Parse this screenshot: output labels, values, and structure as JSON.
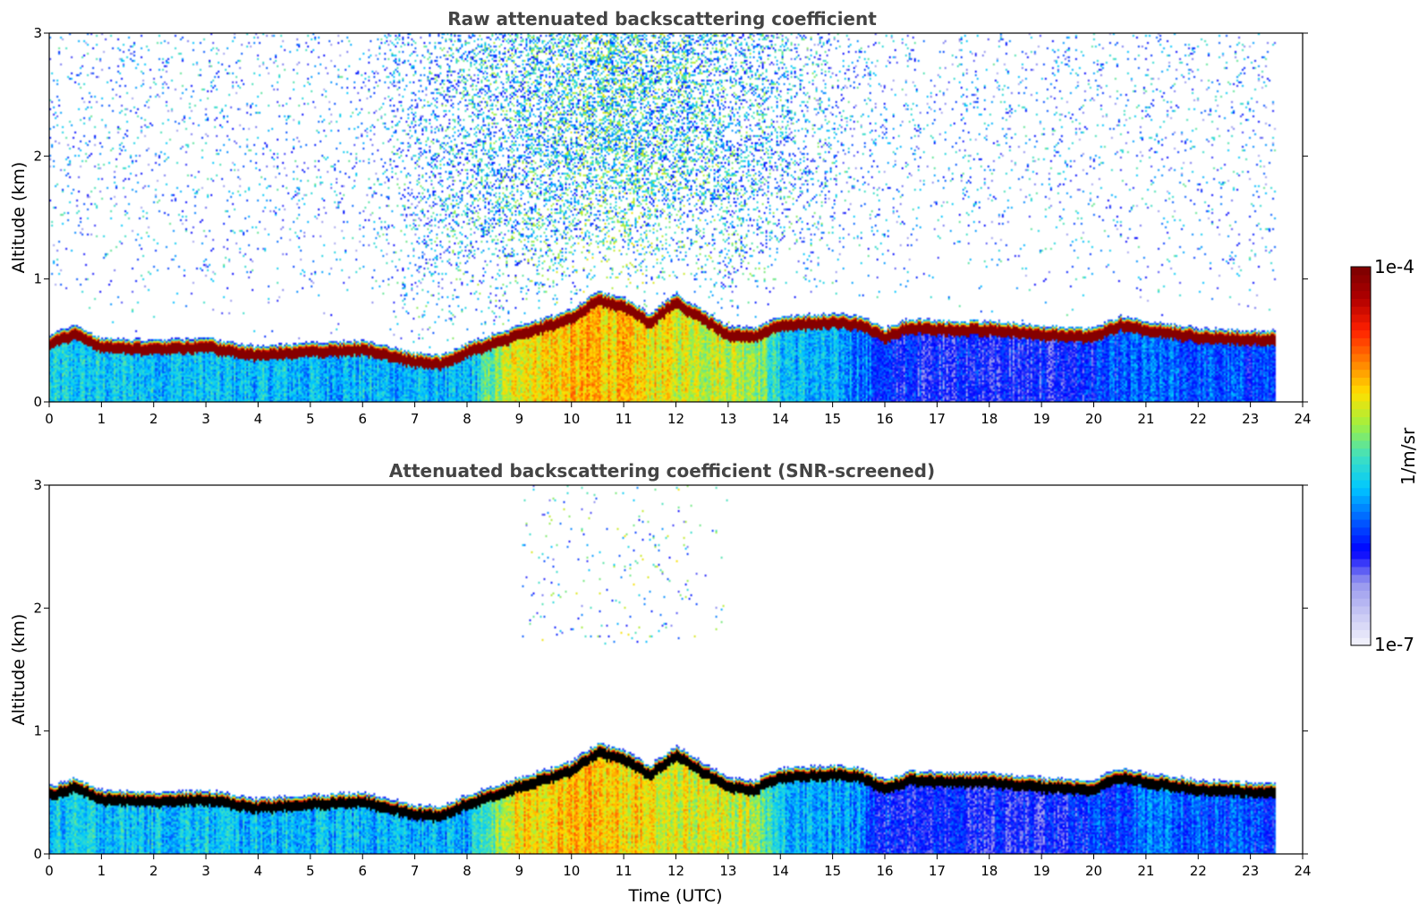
{
  "chart_data": [
    {
      "type": "heatmap",
      "title": "Raw attenuated backscattering coefficient",
      "xlabel": "",
      "ylabel": "Altitude (km)",
      "xlim": [
        0,
        24
      ],
      "ylim": [
        0,
        3
      ],
      "x_ticks": [
        "0",
        "1",
        "2",
        "3",
        "4",
        "5",
        "6",
        "7",
        "8",
        "9",
        "10",
        "11",
        "12",
        "13",
        "14",
        "15",
        "16",
        "17",
        "18",
        "19",
        "20",
        "21",
        "22",
        "23",
        "24"
      ],
      "y_ticks": [
        "0",
        "1",
        "2",
        "3"
      ],
      "data_extent_hours": [
        0,
        23.5
      ],
      "layer_top_km": {
        "time_h": [
          0,
          0.5,
          1,
          2,
          3,
          4,
          5,
          6,
          7,
          7.5,
          8,
          9,
          10,
          10.5,
          11,
          11.5,
          12,
          12.5,
          13,
          13.5,
          14,
          15,
          15.5,
          16,
          16.5,
          17,
          18,
          19,
          20,
          20.5,
          21,
          22,
          23,
          23.5
        ],
        "value": [
          0.55,
          0.62,
          0.52,
          0.5,
          0.52,
          0.45,
          0.48,
          0.5,
          0.4,
          0.38,
          0.48,
          0.62,
          0.75,
          0.9,
          0.85,
          0.72,
          0.88,
          0.75,
          0.62,
          0.6,
          0.7,
          0.72,
          0.7,
          0.6,
          0.68,
          0.66,
          0.66,
          0.62,
          0.6,
          0.7,
          0.66,
          0.6,
          0.58,
          0.58
        ]
      },
      "aerosol_level_log10": {
        "time_h": [
          0,
          8,
          9,
          10.5,
          12,
          13.5,
          14,
          15.5,
          16,
          19,
          21,
          23.5
        ],
        "value": [
          -5.7,
          -5.8,
          -5.0,
          -4.9,
          -5.1,
          -5.2,
          -5.7,
          -5.9,
          -6.2,
          -6.3,
          -6.0,
          -6.1
        ]
      },
      "noise": "strong"
    },
    {
      "type": "heatmap",
      "title": "Attenuated backscattering coefficient (SNR-screened)",
      "xlabel": "Time (UTC)",
      "ylabel": "Altitude (km)",
      "xlim": [
        0,
        24
      ],
      "ylim": [
        0,
        3
      ],
      "x_ticks": [
        "0",
        "1",
        "2",
        "3",
        "4",
        "5",
        "6",
        "7",
        "8",
        "9",
        "10",
        "11",
        "12",
        "13",
        "14",
        "15",
        "16",
        "17",
        "18",
        "19",
        "20",
        "21",
        "22",
        "23",
        "24"
      ],
      "y_ticks": [
        "0",
        "1",
        "2",
        "3"
      ],
      "data_extent_hours": [
        0,
        23.5
      ],
      "layer_top_km": {
        "time_h": [
          0,
          0.5,
          1,
          2,
          3,
          4,
          5,
          6,
          7,
          7.5,
          8,
          9,
          10,
          10.5,
          11,
          11.5,
          12,
          12.5,
          13,
          13.5,
          14,
          15,
          15.5,
          16,
          16.5,
          17,
          18,
          19,
          20,
          20.5,
          21,
          22,
          23,
          23.5
        ],
        "value": [
          0.55,
          0.62,
          0.52,
          0.5,
          0.52,
          0.45,
          0.48,
          0.5,
          0.4,
          0.38,
          0.48,
          0.62,
          0.75,
          0.9,
          0.85,
          0.72,
          0.88,
          0.75,
          0.62,
          0.6,
          0.7,
          0.72,
          0.7,
          0.6,
          0.68,
          0.66,
          0.66,
          0.62,
          0.6,
          0.7,
          0.66,
          0.6,
          0.58,
          0.58
        ]
      },
      "aerosol_level_log10": {
        "time_h": [
          0,
          8,
          9,
          10.5,
          12,
          13.5,
          14,
          15.5,
          16,
          19,
          21,
          23.5
        ],
        "value": [
          -5.7,
          -5.8,
          -5.0,
          -4.9,
          -5.1,
          -5.2,
          -5.7,
          -5.9,
          -6.2,
          -6.3,
          -6.0,
          -6.1
        ]
      },
      "noise": "screened",
      "saturated_color": "#000000"
    }
  ],
  "colorbar": {
    "label": "1/m/sr",
    "max_label": "1e-4",
    "min_label": "1e-7",
    "scale": "log",
    "range_log10": [
      -7,
      -4
    ],
    "colors": [
      "#f4f4fc",
      "#c8c8f4",
      "#9696ee",
      "#0000ff",
      "#0060ff",
      "#00c8ff",
      "#40e0c0",
      "#a0f040",
      "#ffe000",
      "#ff8000",
      "#ff2000",
      "#b00000",
      "#7a0000"
    ]
  }
}
